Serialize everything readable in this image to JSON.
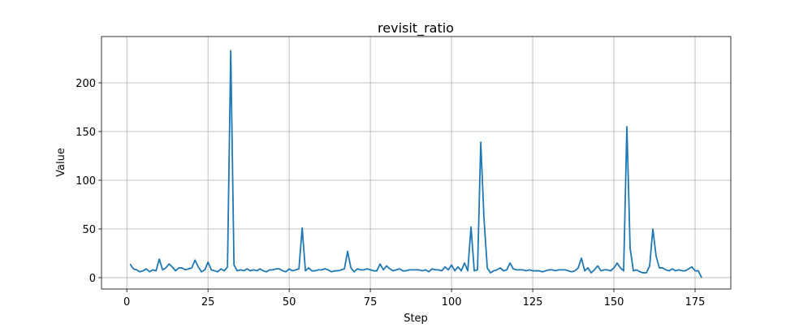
{
  "chart_data": {
    "type": "line",
    "title": "revisit_ratio",
    "x_label": "Step",
    "y_label": "Value",
    "x": [
      1,
      2,
      3,
      4,
      5,
      6,
      7,
      8,
      9,
      10,
      11,
      12,
      13,
      14,
      15,
      16,
      17,
      18,
      19,
      20,
      21,
      22,
      23,
      24,
      25,
      26,
      27,
      28,
      29,
      30,
      31,
      32,
      33,
      34,
      35,
      36,
      37,
      38,
      39,
      40,
      41,
      42,
      43,
      44,
      45,
      46,
      47,
      48,
      49,
      50,
      51,
      52,
      53,
      54,
      55,
      56,
      57,
      58,
      59,
      60,
      61,
      62,
      63,
      64,
      65,
      66,
      67,
      68,
      69,
      70,
      71,
      72,
      73,
      74,
      75,
      76,
      77,
      78,
      79,
      80,
      81,
      82,
      83,
      84,
      85,
      86,
      87,
      88,
      89,
      90,
      91,
      92,
      93,
      94,
      95,
      96,
      97,
      98,
      99,
      100,
      101,
      102,
      103,
      104,
      105,
      106,
      107,
      108,
      109,
      110,
      111,
      112,
      113,
      114,
      115,
      116,
      117,
      118,
      119,
      120,
      121,
      122,
      123,
      124,
      125,
      126,
      127,
      128,
      129,
      130,
      131,
      132,
      133,
      134,
      135,
      136,
      137,
      138,
      139,
      140,
      141,
      142,
      143,
      144,
      145,
      146,
      147,
      148,
      149,
      150,
      151,
      152,
      153,
      154,
      155,
      156,
      157,
      158,
      159,
      160,
      161,
      162,
      163,
      164,
      165,
      166,
      167,
      168,
      169,
      170,
      171,
      172,
      173,
      174,
      175,
      176,
      177
    ],
    "series": [
      {
        "name": "revisit_ratio",
        "color": "#1f77b4",
        "values": [
          14,
          9,
          8,
          6,
          7,
          9,
          6,
          8,
          7,
          19,
          8,
          10,
          14,
          11,
          7,
          10,
          10,
          8,
          9,
          10,
          18,
          11,
          6,
          8,
          16,
          8,
          7,
          6,
          9,
          7,
          11,
          233,
          13,
          7,
          8,
          7,
          9,
          7,
          8,
          7,
          9,
          7,
          6,
          8,
          8,
          9,
          9,
          7,
          6,
          9,
          7,
          8,
          9,
          51,
          7,
          10,
          7,
          7,
          8,
          8,
          9,
          8,
          6,
          7,
          7,
          8,
          9,
          27,
          10,
          6,
          9,
          8,
          8,
          9,
          8,
          7,
          7,
          14,
          8,
          12,
          9,
          7,
          8,
          9,
          7,
          7,
          8,
          8,
          8,
          8,
          7,
          8,
          6,
          9,
          8,
          8,
          7,
          11,
          8,
          13,
          7,
          11,
          7,
          15,
          7,
          52,
          7,
          8,
          139,
          60,
          10,
          5,
          7,
          8,
          10,
          7,
          8,
          15,
          9,
          8,
          8,
          8,
          7,
          8,
          7,
          7,
          7,
          6,
          7,
          8,
          8,
          7,
          8,
          8,
          8,
          7,
          6,
          7,
          10,
          20,
          7,
          10,
          5,
          8,
          12,
          7,
          8,
          8,
          7,
          10,
          15,
          10,
          7,
          155,
          30,
          7,
          8,
          6,
          5,
          5,
          12,
          50,
          22,
          10,
          10,
          8,
          7,
          9,
          7,
          8,
          7,
          7,
          9,
          11,
          7,
          7,
          0
        ]
      }
    ],
    "xlim": [
      -7.8,
      186
    ],
    "ylim": [
      -11.7,
      247.5
    ],
    "xticks": [
      0,
      25,
      50,
      75,
      100,
      125,
      150,
      175
    ],
    "yticks": [
      0,
      50,
      100,
      150,
      200
    ],
    "grid": true
  }
}
